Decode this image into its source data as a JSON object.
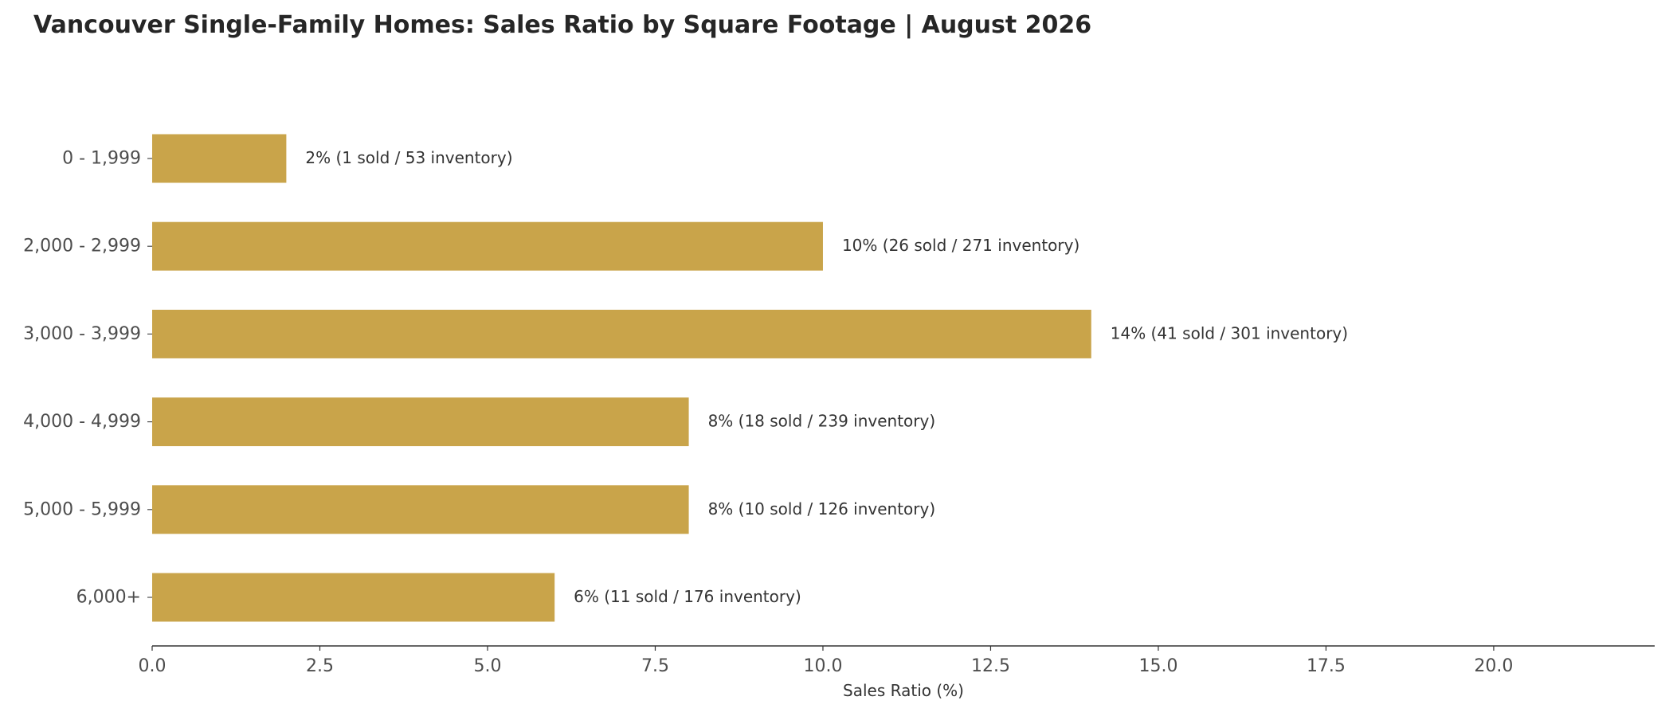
{
  "chart_data": {
    "type": "bar",
    "orientation": "horizontal",
    "title": "Vancouver Single-Family Homes: Sales Ratio by Square Footage | August 2026",
    "xlabel": "Sales Ratio (%)",
    "ylabel": "",
    "xlim": [
      0,
      22.4
    ],
    "xticks": [
      0,
      2.5,
      5,
      7.5,
      10,
      12.5,
      15,
      17.5,
      20
    ],
    "xtick_labels": [
      "0.0",
      "2.5",
      "5.0",
      "7.5",
      "10.0",
      "12.5",
      "15.0",
      "17.5",
      "20.0"
    ],
    "grid": false,
    "bar_color": "#c9a44a",
    "categories": [
      "0 - 1,999",
      "2,000 - 2,999",
      "3,000 - 3,999",
      "4,000 - 4,999",
      "5,000 - 5,999",
      "6,000+"
    ],
    "values": [
      2,
      10,
      14,
      8,
      8,
      6
    ],
    "sold": [
      1,
      26,
      41,
      18,
      10,
      11
    ],
    "inventory": [
      53,
      271,
      301,
      239,
      126,
      176
    ],
    "data_labels": [
      "2%  (1 sold / 53 inventory)",
      "10%  (26 sold / 271 inventory)",
      "14%  (41 sold / 301 inventory)",
      "8%  (18 sold / 239 inventory)",
      "8%  (10 sold / 126 inventory)",
      "6%  (11 sold / 176 inventory)"
    ]
  }
}
